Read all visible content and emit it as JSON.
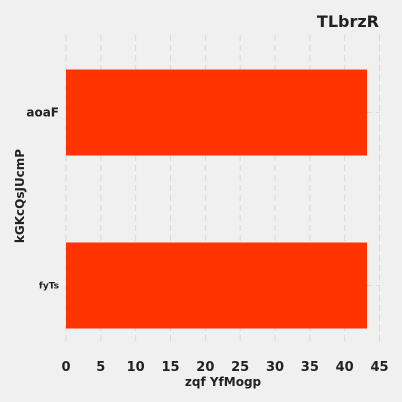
{
  "chart_data": {
    "type": "bar",
    "orientation": "horizontal",
    "title": "TLbrzR",
    "xlabel": "zqf YfMogp",
    "ylabel": "kGKcQsJUcmP",
    "categories": [
      "fyTs",
      "aoaF"
    ],
    "values": [
      43.2,
      43.2
    ],
    "xlim": [
      0,
      45
    ],
    "xticks": [
      0,
      5,
      10,
      15,
      20,
      25,
      30,
      35,
      40,
      45
    ],
    "grid": true,
    "legend": "none",
    "colors": {
      "bar": "#ff3300",
      "background": "#f0f0f0",
      "grid": "#d9d9d9",
      "text": "#222222"
    }
  }
}
